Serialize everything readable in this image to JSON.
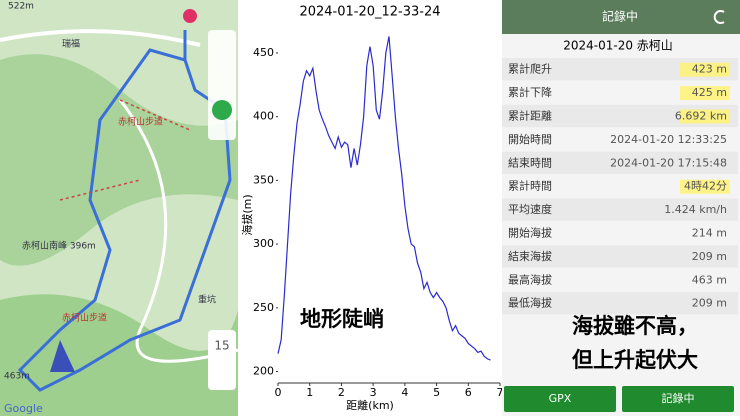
{
  "map": {
    "labels": [
      "522m",
      "瑞福",
      "赤柯山步道",
      "赤柯山南峰 396m",
      "赤柯山步道",
      "463m",
      "重坑"
    ],
    "zoom": "15",
    "brand": "Google"
  },
  "chart_data": {
    "type": "line",
    "title": "2024-01-20_12-33-24",
    "x_label": "距離(km)",
    "y_label": "海拔(m)",
    "x": [
      0,
      0.1,
      0.2,
      0.3,
      0.4,
      0.5,
      0.6,
      0.7,
      0.8,
      0.9,
      1.0,
      1.1,
      1.2,
      1.3,
      1.4,
      1.5,
      1.6,
      1.7,
      1.8,
      1.9,
      2.0,
      2.1,
      2.2,
      2.3,
      2.4,
      2.5,
      2.6,
      2.7,
      2.8,
      2.9,
      3.0,
      3.1,
      3.2,
      3.3,
      3.4,
      3.5,
      3.6,
      3.7,
      3.8,
      3.9,
      4.0,
      4.1,
      4.2,
      4.3,
      4.4,
      4.5,
      4.6,
      4.7,
      4.8,
      4.9,
      5.0,
      5.1,
      5.2,
      5.3,
      5.4,
      5.5,
      5.6,
      5.7,
      5.8,
      5.9,
      6.0,
      6.1,
      6.2,
      6.3,
      6.4,
      6.5,
      6.6,
      6.7
    ],
    "series": [
      {
        "name": "海拔",
        "color": "#2a2ad0",
        "values": [
          214,
          225,
          260,
          300,
          340,
          370,
          395,
          410,
          428,
          436,
          432,
          438,
          420,
          405,
          398,
          392,
          385,
          380,
          375,
          384,
          376,
          380,
          378,
          360,
          375,
          362,
          378,
          400,
          440,
          455,
          440,
          405,
          398,
          420,
          450,
          463,
          432,
          400,
          375,
          355,
          330,
          312,
          300,
          298,
          285,
          278,
          265,
          270,
          262,
          258,
          262,
          258,
          255,
          250,
          240,
          232,
          236,
          230,
          228,
          226,
          222,
          220,
          218,
          215,
          216,
          212,
          210,
          209
        ]
      }
    ],
    "xlim": [
      0,
      7
    ],
    "xticks": [
      0,
      1,
      2,
      3,
      4,
      5,
      6,
      7
    ],
    "ylim": [
      191,
      468
    ],
    "yticks": [
      200,
      250,
      300,
      350,
      400,
      450
    ],
    "annotation": "地形陡峭"
  },
  "stats": {
    "header": "記錄中",
    "title": "2024-01-20 赤柯山",
    "rows": [
      {
        "label": "累計爬升",
        "value": "423 m",
        "highlight": true
      },
      {
        "label": "累計下降",
        "value": "425 m",
        "highlight": true
      },
      {
        "label": "累計距離",
        "value": "6.692 km",
        "highlight": true
      },
      {
        "label": "開始時間",
        "value": "2024-01-20 12:33:25",
        "highlight": false
      },
      {
        "label": "結束時間",
        "value": "2024-01-20 17:15:48",
        "highlight": false
      },
      {
        "label": "累計時間",
        "value": "4時42分",
        "highlight": true
      },
      {
        "label": "平均速度",
        "value": "1.424 km/h",
        "highlight": false
      },
      {
        "label": "開始海拔",
        "value": "214 m",
        "highlight": false
      },
      {
        "label": "結束海拔",
        "value": "209 m",
        "highlight": false
      },
      {
        "label": "最高海拔",
        "value": "463 m",
        "highlight": false
      },
      {
        "label": "最低海拔",
        "value": "209 m",
        "highlight": false
      }
    ],
    "note": [
      "海拔雖不高，",
      "但上升起伏大"
    ],
    "buttons": [
      "GPX",
      "記錄中"
    ]
  }
}
